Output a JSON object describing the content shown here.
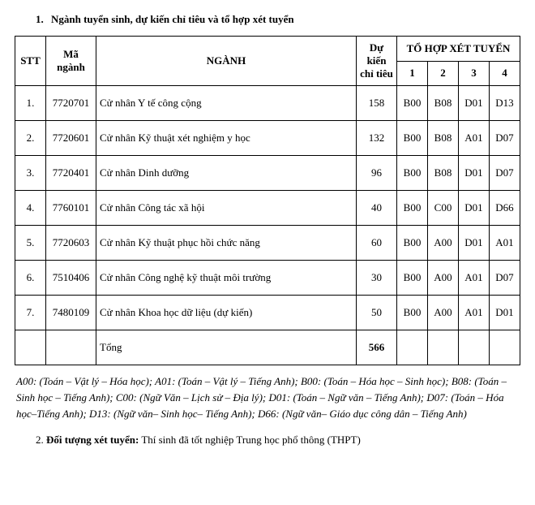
{
  "section1": {
    "number": "1.",
    "title": "Ngành tuyển sinh, dự kiến chỉ tiêu và tổ hợp xét tuyển"
  },
  "table": {
    "headers": {
      "stt": "STT",
      "code": "Mã ngành",
      "name": "NGÀNH",
      "quota": "Dự kiến chỉ tiêu",
      "combo_group": "TỔ HỢP XÉT TUYỂN",
      "c1": "1",
      "c2": "2",
      "c3": "3",
      "c4": "4"
    },
    "rows": [
      {
        "stt": "1.",
        "code": "7720701",
        "name": "Cử nhân Y tế công cộng",
        "quota": "158",
        "c1": "B00",
        "c2": "B08",
        "c3": "D01",
        "c4": "D13"
      },
      {
        "stt": "2.",
        "code": "7720601",
        "name": "Cử nhân Kỹ thuật xét nghiệm y học",
        "quota": "132",
        "c1": "B00",
        "c2": "B08",
        "c3": "A01",
        "c4": "D07"
      },
      {
        "stt": "3.",
        "code": "7720401",
        "name": "Cử nhân Dinh dưỡng",
        "quota": "96",
        "c1": "B00",
        "c2": "B08",
        "c3": "D01",
        "c4": "D07"
      },
      {
        "stt": "4.",
        "code": "7760101",
        "name": "Cử nhân Công tác xã hội",
        "quota": "40",
        "c1": "B00",
        "c2": "C00",
        "c3": "D01",
        "c4": "D66"
      },
      {
        "stt": "5.",
        "code": "7720603",
        "name": "Cử nhân Kỹ thuật phục hồi chức năng",
        "quota": "60",
        "c1": "B00",
        "c2": "A00",
        "c3": "D01",
        "c4": "A01"
      },
      {
        "stt": "6.",
        "code": "7510406",
        "name": "Cử nhân Công nghệ kỹ thuật môi trường",
        "quota": "30",
        "c1": "B00",
        "c2": "A00",
        "c3": "A01",
        "c4": "D07"
      },
      {
        "stt": "7.",
        "code": "7480109",
        "name": "Cử nhân Khoa học dữ liệu (dự kiến)",
        "quota": "50",
        "c1": "B00",
        "c2": "A00",
        "c3": "A01",
        "c4": "D01"
      }
    ],
    "total": {
      "label": "Tổng",
      "value": "566"
    }
  },
  "legend": "A00: (Toán – Vật lý – Hóa học);  A01: (Toán – Vật lý – Tiếng Anh); B00: (Toán – Hóa học – Sinh học);  B08: (Toán – Sinh học – Tiếng Anh); C00: (Ngữ Văn – Lịch sử – Địa lý); D01: (Toán – Ngữ văn – Tiếng Anh); D07: (Toán – Hóa học–Tiếng Anh); D13: (Ngữ văn– Sinh học– Tiếng Anh); D66: (Ngữ văn– Giáo dục công dân – Tiếng Anh)",
  "section2": {
    "number": "2.",
    "label": "Đối tượng xét tuyển:",
    "text": "Thí sinh đã tốt nghiệp Trung học phổ thông (THPT)"
  }
}
